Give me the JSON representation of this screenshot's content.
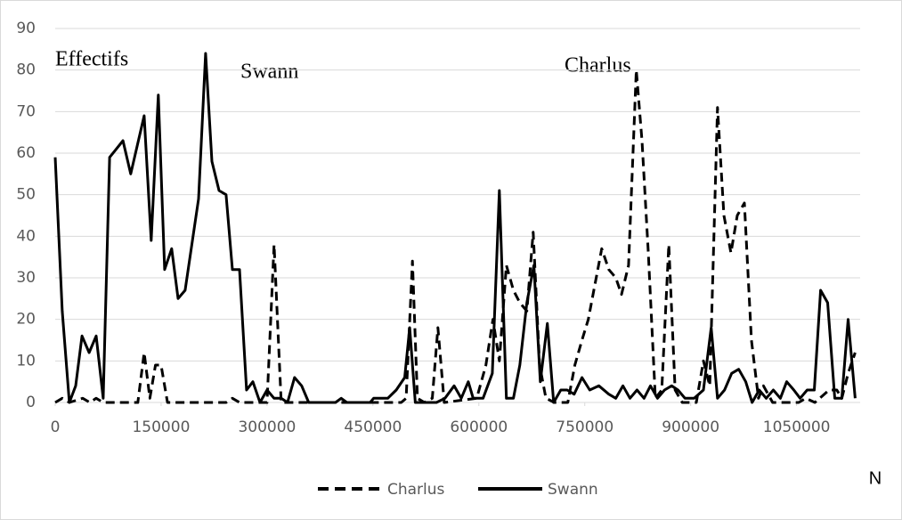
{
  "chart_data": {
    "type": "line",
    "y_label": "Effectifs",
    "x_label": "N",
    "annotations": [
      "Swann",
      "Charlus"
    ],
    "xlim": [
      0,
      1140000
    ],
    "xticks": [
      0,
      150000,
      300000,
      450000,
      600000,
      750000,
      900000,
      1050000
    ],
    "ylim": [
      0,
      90
    ],
    "yticks": [
      0,
      10,
      20,
      30,
      40,
      50,
      60,
      70,
      80,
      90
    ],
    "grid": true,
    "series": [
      {
        "name": "Charlus",
        "color": "#000000",
        "line_style": "dashed",
        "x": [
          0,
          10000,
          20000,
          39000,
          49000,
          58000,
          68000,
          117000,
          126000,
          134000,
          142000,
          150000,
          159000,
          242000,
          251000,
          261000,
          300000,
          310000,
          320000,
          490000,
          497000,
          506000,
          513000,
          523000,
          534000,
          542000,
          551000,
          597000,
          610000,
          620000,
          629000,
          639000,
          649000,
          658000,
          668000,
          677000,
          686000,
          695000,
          707000,
          726000,
          736000,
          746000,
          755000,
          764000,
          774000,
          784000,
          794000,
          802000,
          812000,
          823000,
          831000,
          840000,
          850000,
          859000,
          869000,
          878000,
          888000,
          908000,
          918000,
          927000,
          938000,
          947000,
          957000,
          966000,
          976000,
          986000,
          996000,
          1003000,
          1016000,
          1053000,
          1063000,
          1076000,
          1096000,
          1107000,
          1114000,
          1123000,
          1133000
        ],
        "values": [
          0,
          1,
          0,
          1,
          0,
          1,
          0,
          0,
          12,
          1,
          9,
          9,
          0,
          0,
          1,
          0,
          0,
          38,
          0,
          0,
          1,
          34,
          1,
          0,
          1,
          18,
          0,
          1,
          9,
          20,
          10,
          33,
          27,
          24,
          22,
          41,
          9,
          1,
          0,
          0,
          9,
          15,
          20,
          28,
          37,
          32,
          30,
          26,
          33,
          80,
          63,
          36,
          1,
          3,
          38,
          3,
          0,
          0,
          10,
          4,
          71,
          45,
          36,
          45,
          48,
          15,
          1,
          4,
          0,
          0,
          1,
          0,
          3,
          3,
          1,
          7,
          12
        ]
      },
      {
        "name": "Swann",
        "color": "#000000",
        "line_style": "solid",
        "x": [
          0,
          10000,
          20000,
          29000,
          38000,
          48000,
          58000,
          68000,
          77000,
          96000,
          107000,
          126000,
          136000,
          146000,
          155000,
          165000,
          174000,
          184000,
          203000,
          213000,
          222000,
          232000,
          242000,
          251000,
          261000,
          271000,
          280000,
          290000,
          300000,
          310000,
          320000,
          329000,
          339000,
          349000,
          359000,
          397000,
          405000,
          413000,
          446000,
          451000,
          471000,
          483000,
          495000,
          502000,
          510000,
          540000,
          552000,
          565000,
          575000,
          585000,
          592000,
          606000,
          619000,
          629000,
          639000,
          649000,
          658000,
          668000,
          678000,
          687000,
          697000,
          706000,
          716000,
          725000,
          735000,
          746000,
          757000,
          770000,
          784000,
          794000,
          804000,
          814000,
          824000,
          834000,
          843000,
          853000,
          863000,
          873000,
          882000,
          892000,
          905000,
          918000,
          929000,
          938000,
          948000,
          958000,
          968000,
          978000,
          987000,
          997000,
          1007000,
          1017000,
          1027000,
          1036000,
          1046000,
          1055000,
          1065000,
          1075000,
          1084000,
          1094000,
          1104000,
          1114000,
          1123000,
          1133000
        ],
        "values": [
          59,
          22,
          0,
          4,
          16,
          12,
          16,
          1,
          59,
          63,
          55,
          69,
          39,
          74,
          32,
          37,
          25,
          27,
          49,
          84,
          58,
          51,
          50,
          32,
          32,
          3,
          5,
          0,
          3,
          1,
          1,
          0,
          6,
          4,
          0,
          0,
          1,
          0,
          0,
          1,
          1,
          3,
          6,
          18,
          0,
          0,
          1,
          4,
          1,
          5,
          1,
          1,
          7,
          51,
          1,
          1,
          9,
          24,
          33,
          5,
          19,
          0,
          3,
          3,
          2,
          6,
          3,
          4,
          2,
          1,
          4,
          1,
          3,
          1,
          4,
          1,
          3,
          4,
          3,
          1,
          1,
          3,
          18,
          1,
          3,
          7,
          8,
          5,
          0,
          3,
          1,
          3,
          1,
          5,
          3,
          1,
          3,
          3,
          27,
          24,
          1,
          1,
          20,
          1
        ]
      }
    ]
  }
}
